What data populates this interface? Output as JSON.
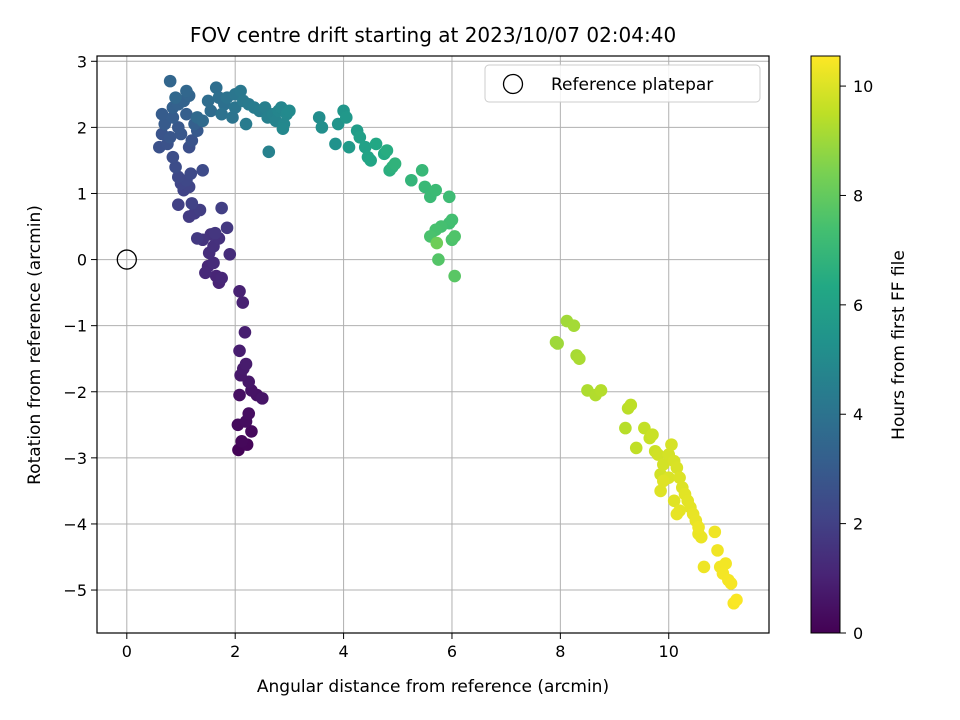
{
  "chart_data": {
    "type": "scatter",
    "title": "FOV centre drift starting at 2023/10/07 02:04:40",
    "xlabel": "Angular distance from reference (arcmin)",
    "ylabel": "Rotation from reference (arcmin)",
    "xlim": [
      -0.55,
      11.85
    ],
    "ylim": [
      -5.65,
      3.08
    ],
    "xticks": [
      0,
      2,
      4,
      6,
      8,
      10
    ],
    "yticks": [
      -5,
      -4,
      -3,
      -2,
      -1,
      0,
      1,
      2,
      3
    ],
    "grid": true,
    "legend_position": "top-right",
    "colormap": "viridis",
    "colorbar": {
      "label": "Hours from first FF file",
      "range": [
        0,
        10.55
      ],
      "ticks": [
        0,
        2,
        4,
        6,
        8,
        10
      ]
    },
    "reference_point": {
      "name": "Reference platepar",
      "x": 0,
      "y": 0
    },
    "points": [
      [
        2.06,
        -2.88,
        0.1
      ],
      [
        2.22,
        -2.8,
        0.15
      ],
      [
        2.12,
        -2.75,
        0.2
      ],
      [
        2.3,
        -2.6,
        0.25
      ],
      [
        2.05,
        -2.5,
        0.3
      ],
      [
        2.2,
        -2.45,
        0.35
      ],
      [
        2.25,
        -2.33,
        0.4
      ],
      [
        2.08,
        -2.05,
        0.45
      ],
      [
        2.4,
        -2.05,
        0.5
      ],
      [
        2.3,
        -1.98,
        0.55
      ],
      [
        2.5,
        -2.1,
        0.6
      ],
      [
        2.25,
        -1.85,
        0.65
      ],
      [
        2.1,
        -1.75,
        0.7
      ],
      [
        2.15,
        -1.65,
        0.75
      ],
      [
        2.2,
        -1.58,
        0.8
      ],
      [
        2.08,
        -1.38,
        0.85
      ],
      [
        2.18,
        -1.1,
        0.9
      ],
      [
        2.14,
        -0.65,
        0.95
      ],
      [
        2.08,
        -0.48,
        1.0
      ],
      [
        1.7,
        -0.35,
        1.05
      ],
      [
        1.65,
        -0.25,
        1.1
      ],
      [
        1.75,
        -0.28,
        1.15
      ],
      [
        1.5,
        -0.1,
        1.2
      ],
      [
        1.45,
        -0.2,
        1.25
      ],
      [
        1.6,
        -0.05,
        1.3
      ],
      [
        1.9,
        0.08,
        1.35
      ],
      [
        1.52,
        0.1,
        1.4
      ],
      [
        1.6,
        0.2,
        1.45
      ],
      [
        1.7,
        0.32,
        1.5
      ],
      [
        1.55,
        0.38,
        1.55
      ],
      [
        1.4,
        0.3,
        1.6
      ],
      [
        1.63,
        0.4,
        1.65
      ],
      [
        1.85,
        0.48,
        1.7
      ],
      [
        1.3,
        0.32,
        1.75
      ],
      [
        1.15,
        0.65,
        1.8
      ],
      [
        1.25,
        0.7,
        1.85
      ],
      [
        1.35,
        0.75,
        1.9
      ],
      [
        1.75,
        0.78,
        1.95
      ],
      [
        0.95,
        0.83,
        2.0
      ],
      [
        1.2,
        0.85,
        2.05
      ],
      [
        1.05,
        1.05,
        2.1
      ],
      [
        1.15,
        1.1,
        2.15
      ],
      [
        1.0,
        1.15,
        2.2
      ],
      [
        1.1,
        1.2,
        2.25
      ],
      [
        0.95,
        1.25,
        2.3
      ],
      [
        1.18,
        1.3,
        2.35
      ],
      [
        1.4,
        1.35,
        2.4
      ],
      [
        0.9,
        1.4,
        2.45
      ],
      [
        0.85,
        1.55,
        2.5
      ],
      [
        1.15,
        1.7,
        2.55
      ],
      [
        0.6,
        1.7,
        2.6
      ],
      [
        0.75,
        1.75,
        2.65
      ],
      [
        1.2,
        1.8,
        2.7
      ],
      [
        0.65,
        1.9,
        2.75
      ],
      [
        0.8,
        1.85,
        2.8
      ],
      [
        1.0,
        1.9,
        2.85
      ],
      [
        0.95,
        2.0,
        2.9
      ],
      [
        1.3,
        1.95,
        2.95
      ],
      [
        0.7,
        2.05,
        3.0
      ],
      [
        0.65,
        2.2,
        3.05
      ],
      [
        0.85,
        2.15,
        3.1
      ],
      [
        1.1,
        2.2,
        3.15
      ],
      [
        1.25,
        2.05,
        3.2
      ],
      [
        0.85,
        2.3,
        3.25
      ],
      [
        0.95,
        2.35,
        3.3
      ],
      [
        1.05,
        2.4,
        3.35
      ],
      [
        1.15,
        2.48,
        3.4
      ],
      [
        0.8,
        2.7,
        3.45
      ],
      [
        1.1,
        2.55,
        3.5
      ],
      [
        0.9,
        2.45,
        3.55
      ],
      [
        1.3,
        2.15,
        3.6
      ],
      [
        1.4,
        2.1,
        3.65
      ],
      [
        1.55,
        2.25,
        3.7
      ],
      [
        1.5,
        2.4,
        3.75
      ],
      [
        1.65,
        2.6,
        3.8
      ],
      [
        1.7,
        2.45,
        3.85
      ],
      [
        1.8,
        2.35,
        3.9
      ],
      [
        1.75,
        2.2,
        3.95
      ],
      [
        1.85,
        2.45,
        4.0
      ],
      [
        1.95,
        2.15,
        4.05
      ],
      [
        2.0,
        2.3,
        4.1
      ],
      [
        2.0,
        2.5,
        4.15
      ],
      [
        2.1,
        2.55,
        4.2
      ],
      [
        2.15,
        2.4,
        4.25
      ],
      [
        2.25,
        2.35,
        4.3
      ],
      [
        2.2,
        2.05,
        4.35
      ],
      [
        2.35,
        2.3,
        4.4
      ],
      [
        2.45,
        2.25,
        4.45
      ],
      [
        2.55,
        2.3,
        4.5
      ],
      [
        2.6,
        2.15,
        4.55
      ],
      [
        2.62,
        1.63,
        4.6
      ],
      [
        2.7,
        2.2,
        4.65
      ],
      [
        2.75,
        2.1,
        4.7
      ],
      [
        2.8,
        2.25,
        4.75
      ],
      [
        2.85,
        2.3,
        4.8
      ],
      [
        2.9,
        2.05,
        4.85
      ],
      [
        2.88,
        1.98,
        4.9
      ],
      [
        2.95,
        2.2,
        4.95
      ],
      [
        3.0,
        2.25,
        5.0
      ],
      [
        3.55,
        2.15,
        5.1
      ],
      [
        3.6,
        2.0,
        5.2
      ],
      [
        3.85,
        1.75,
        5.3
      ],
      [
        3.9,
        2.05,
        5.4
      ],
      [
        4.0,
        2.25,
        5.5
      ],
      [
        4.05,
        2.15,
        5.6
      ],
      [
        4.1,
        1.7,
        5.7
      ],
      [
        4.25,
        1.95,
        5.8
      ],
      [
        4.3,
        1.85,
        5.9
      ],
      [
        4.4,
        1.7,
        6.0
      ],
      [
        4.45,
        1.55,
        6.1
      ],
      [
        4.5,
        1.5,
        6.2
      ],
      [
        4.6,
        1.75,
        6.3
      ],
      [
        4.75,
        1.6,
        6.4
      ],
      [
        4.8,
        1.65,
        6.5
      ],
      [
        4.85,
        1.35,
        6.6
      ],
      [
        4.9,
        1.4,
        6.7
      ],
      [
        4.95,
        1.45,
        6.8
      ],
      [
        5.25,
        1.2,
        6.9
      ],
      [
        5.45,
        1.35,
        7.0
      ],
      [
        5.5,
        1.1,
        7.05
      ],
      [
        5.6,
        0.95,
        7.1
      ],
      [
        5.7,
        1.05,
        7.15
      ],
      [
        5.95,
        0.95,
        7.2
      ],
      [
        5.95,
        0.55,
        7.3
      ],
      [
        6.0,
        0.6,
        7.35
      ],
      [
        5.8,
        0.5,
        7.4
      ],
      [
        5.7,
        0.45,
        7.45
      ],
      [
        5.6,
        0.35,
        7.5
      ],
      [
        6.0,
        0.3,
        7.55
      ],
      [
        6.05,
        0.35,
        7.6
      ],
      [
        5.75,
        0.0,
        7.7
      ],
      [
        6.05,
        -0.25,
        7.8
      ],
      [
        5.72,
        0.25,
        8.2
      ],
      [
        7.92,
        -1.25,
        9.0
      ],
      [
        7.95,
        -1.27,
        9.0
      ],
      [
        8.12,
        -0.93,
        9.05
      ],
      [
        8.25,
        -1.0,
        9.1
      ],
      [
        8.3,
        -1.45,
        9.15
      ],
      [
        8.35,
        -1.5,
        9.2
      ],
      [
        8.5,
        -1.98,
        9.25
      ],
      [
        8.65,
        -2.05,
        9.3
      ],
      [
        8.75,
        -1.98,
        9.35
      ],
      [
        9.2,
        -2.55,
        9.4
      ],
      [
        9.25,
        -2.25,
        9.45
      ],
      [
        9.3,
        -2.2,
        9.5
      ],
      [
        9.4,
        -2.85,
        9.55
      ],
      [
        9.55,
        -2.55,
        9.6
      ],
      [
        9.65,
        -2.7,
        9.65
      ],
      [
        9.7,
        -2.65,
        9.7
      ],
      [
        9.75,
        -2.9,
        9.75
      ],
      [
        9.8,
        -2.95,
        9.8
      ],
      [
        9.85,
        -3.25,
        9.82
      ],
      [
        9.9,
        -3.1,
        9.85
      ],
      [
        10.0,
        -2.95,
        9.88
      ],
      [
        10.05,
        -2.8,
        9.9
      ],
      [
        10.1,
        -3.05,
        9.92
      ],
      [
        10.15,
        -3.15,
        9.95
      ],
      [
        10.0,
        -3.3,
        9.97
      ],
      [
        10.2,
        -3.3,
        10.0
      ],
      [
        10.25,
        -3.45,
        10.02
      ],
      [
        9.85,
        -3.5,
        10.04
      ],
      [
        9.9,
        -3.35,
        10.06
      ],
      [
        10.1,
        -3.65,
        10.08
      ],
      [
        10.3,
        -3.55,
        10.1
      ],
      [
        10.35,
        -3.65,
        10.12
      ],
      [
        10.4,
        -3.75,
        10.14
      ],
      [
        10.2,
        -3.8,
        10.16
      ],
      [
        10.15,
        -3.85,
        10.18
      ],
      [
        10.45,
        -3.85,
        10.2
      ],
      [
        10.5,
        -3.95,
        10.22
      ],
      [
        10.55,
        -4.15,
        10.24
      ],
      [
        10.6,
        -4.2,
        10.26
      ],
      [
        10.55,
        -4.05,
        10.28
      ],
      [
        10.65,
        -4.65,
        10.3
      ],
      [
        10.85,
        -4.12,
        10.32
      ],
      [
        10.9,
        -4.4,
        10.34
      ],
      [
        10.95,
        -4.65,
        10.36
      ],
      [
        11.05,
        -4.6,
        10.38
      ],
      [
        11.0,
        -4.75,
        10.4
      ],
      [
        11.1,
        -4.85,
        10.42
      ],
      [
        11.15,
        -4.9,
        10.44
      ],
      [
        11.2,
        -5.2,
        10.46
      ],
      [
        11.25,
        -5.15,
        10.5
      ]
    ]
  }
}
